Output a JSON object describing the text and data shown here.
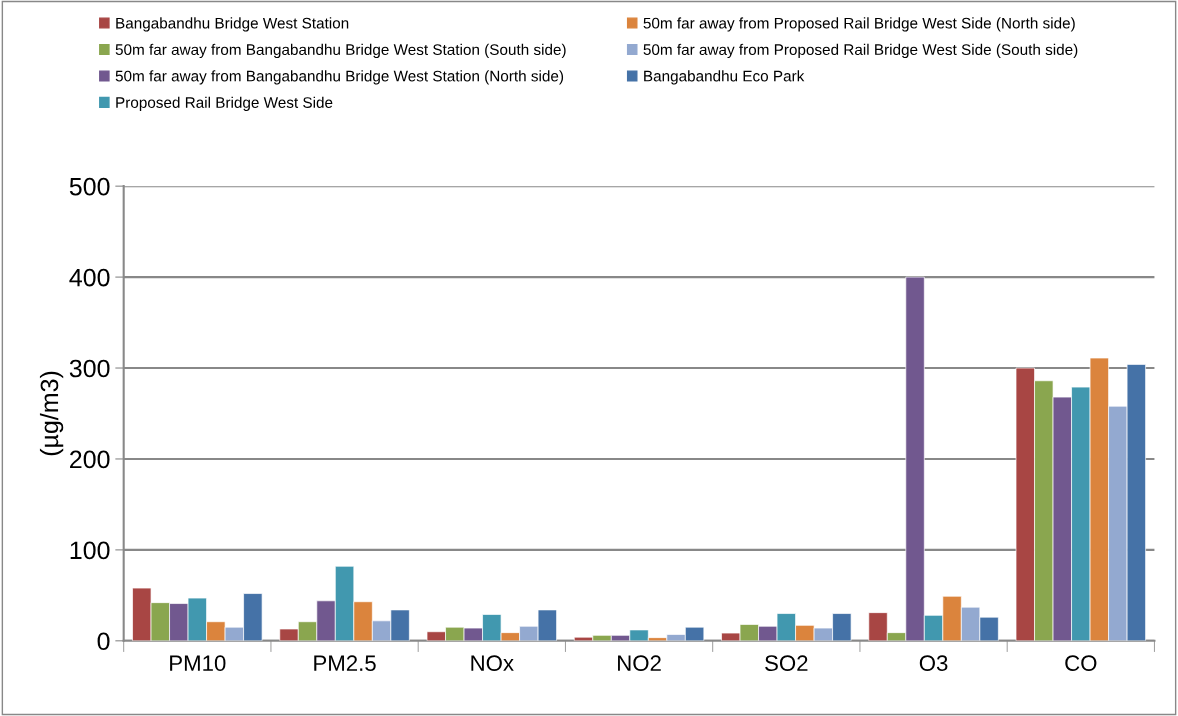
{
  "chart_data": {
    "type": "bar",
    "ylabel": "(µg/m3)",
    "categories": [
      "PM10",
      "PM2.5",
      "NOx",
      "NO2",
      "SO2",
      "O3",
      "CO"
    ],
    "ylim": [
      0,
      500
    ],
    "yticks": [
      0,
      100,
      200,
      300,
      400,
      500
    ],
    "grid": "y",
    "legend": "top",
    "series": [
      {
        "name": "Bangabandhu Bridge West Station",
        "color": "#a84644",
        "values": [
          58,
          13,
          10,
          4,
          8.5,
          31,
          300
        ]
      },
      {
        "name": "50m far away from Bangabandhu Bridge West Station (South side)",
        "color": "#8aa64f",
        "values": [
          42,
          21,
          15,
          6,
          18,
          9,
          286
        ]
      },
      {
        "name": "50m far away from Bangabandhu Bridge West Station (North side)",
        "color": "#71588f",
        "values": [
          41,
          44,
          14,
          6,
          16,
          400,
          268
        ]
      },
      {
        "name": "Proposed Rail Bridge West Side",
        "color": "#4198af",
        "values": [
          47,
          82,
          29,
          12,
          30,
          28,
          279
        ]
      },
      {
        "name": "50m far away from Proposed Rail Bridge West Side (North side)",
        "color": "#db843d",
        "values": [
          21,
          43,
          9,
          3.5,
          17,
          49,
          311
        ]
      },
      {
        "name": "50m far away from Proposed Rail Bridge West Side (South side)",
        "color": "#93a9d0",
        "values": [
          15,
          22,
          16,
          7,
          14,
          37,
          258
        ]
      },
      {
        "name": "Bangabandhu Eco Park",
        "color": "#4572a7",
        "values": [
          52,
          34,
          34,
          15,
          30,
          26,
          304
        ]
      }
    ]
  }
}
